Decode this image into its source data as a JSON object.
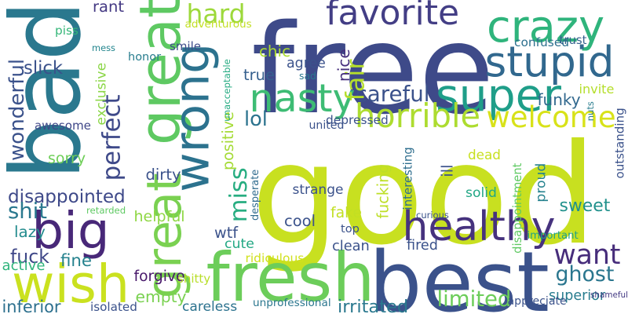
{
  "words": [
    {
      "text": "good",
      "color": "#c8e020",
      "vertical": false
    },
    {
      "text": "free",
      "color": "#3e4a89",
      "vertical": false
    },
    {
      "text": "bad",
      "color": "#2a788e",
      "vertical": true
    },
    {
      "text": "great",
      "color": "#5ec962",
      "vertical": true
    },
    {
      "text": "best",
      "color": "#3b528b",
      "vertical": false
    },
    {
      "text": "fresh",
      "color": "#6ccd5a",
      "vertical": false
    },
    {
      "text": "great",
      "color": "#7ad151",
      "vertical": true
    },
    {
      "text": "wrong",
      "color": "#2c728e",
      "vertical": true
    },
    {
      "text": "crazy",
      "color": "#2fb47c",
      "vertical": false
    },
    {
      "text": "wish",
      "color": "#cae11f",
      "vertical": false
    },
    {
      "text": "stupid",
      "color": "#31688e",
      "vertical": false
    },
    {
      "text": "super",
      "color": "#1f9e89",
      "vertical": false
    },
    {
      "text": "nasty",
      "color": "#3dbc74",
      "vertical": false
    },
    {
      "text": "healthy",
      "color": "#46327e",
      "vertical": false
    },
    {
      "text": "big",
      "color": "#482878",
      "vertical": false
    },
    {
      "text": "want",
      "color": "#472d7b",
      "vertical": false
    },
    {
      "text": "favorite",
      "color": "#433e85",
      "vertical": false
    },
    {
      "text": "perfect",
      "color": "#3e4989",
      "vertical": true
    },
    {
      "text": "hard",
      "color": "#9dd93b",
      "vertical": false
    },
    {
      "text": "miss",
      "color": "#27ad81",
      "vertical": true
    },
    {
      "text": "horrible",
      "color": "#addc30",
      "vertical": false
    },
    {
      "text": "welcome",
      "color": "#d8e219",
      "vertical": false
    },
    {
      "text": "wonderful",
      "color": "#3b528b",
      "vertical": true
    },
    {
      "text": "sweet",
      "color": "#21918c",
      "vertical": false
    },
    {
      "text": "disappointed",
      "color": "#3e4989",
      "vertical": false
    },
    {
      "text": "fuck",
      "color": "#3f4788",
      "vertical": false
    },
    {
      "text": "shit",
      "color": "#2a788e",
      "vertical": false
    },
    {
      "text": "ghost",
      "color": "#2a768e",
      "vertical": false
    },
    {
      "text": "careful",
      "color": "#3b528b",
      "vertical": false
    },
    {
      "text": "positive",
      "color": "#a5db36",
      "vertical": true
    },
    {
      "text": "fair",
      "color": "#b5de2b",
      "vertical": true
    },
    {
      "text": "empty",
      "color": "#7ad151",
      "vertical": false
    },
    {
      "text": "limited",
      "color": "#6ccd5a",
      "vertical": false
    },
    {
      "text": "superior",
      "color": "#287c8e",
      "vertical": false
    },
    {
      "text": "top",
      "color": "#3b528b",
      "vertical": false
    },
    {
      "text": "forgive",
      "color": "#48186a",
      "vertical": false
    },
    {
      "text": "rant",
      "color": "#443983",
      "vertical": false
    },
    {
      "text": "mess",
      "color": "#24868e",
      "vertical": false
    },
    {
      "text": "piss",
      "color": "#35b779",
      "vertical": false
    },
    {
      "text": "adventurous",
      "color": "#c2df23",
      "vertical": false
    },
    {
      "text": "chic",
      "color": "#addc30",
      "vertical": false
    },
    {
      "text": "smile",
      "color": "#3e4c8a",
      "vertical": false
    },
    {
      "text": "honor",
      "color": "#287d8e",
      "vertical": false
    },
    {
      "text": "slick",
      "color": "#3b528b",
      "vertical": false
    },
    {
      "text": "true",
      "color": "#355f8d",
      "vertical": false
    },
    {
      "text": "agree",
      "color": "#3b528b",
      "vertical": false
    },
    {
      "text": "sad",
      "color": "#2a788e",
      "vertical": false
    },
    {
      "text": "nice",
      "color": "#472f7d",
      "vertical": true
    },
    {
      "text": "exclusive",
      "color": "#8bd646",
      "vertical": true
    },
    {
      "text": "awesome",
      "color": "#3f4788",
      "vertical": false
    },
    {
      "text": "lol",
      "color": "#2c738e",
      "vertical": false
    },
    {
      "text": "depressed",
      "color": "#3b528b",
      "vertical": false
    },
    {
      "text": "united",
      "color": "#3b528b",
      "vertical": false
    },
    {
      "text": "unacceptable",
      "color": "#25ab82",
      "vertical": true
    },
    {
      "text": "sorry",
      "color": "#6ece58",
      "vertical": false
    },
    {
      "text": "dirty",
      "color": "#3b528b",
      "vertical": false
    },
    {
      "text": "helpful",
      "color": "#8fd744",
      "vertical": false
    },
    {
      "text": "retarded",
      "color": "#5ec962",
      "vertical": false
    },
    {
      "text": "lazy",
      "color": "#228b8d",
      "vertical": false
    },
    {
      "text": "active",
      "color": "#2fb47c",
      "vertical": false
    },
    {
      "text": "fine",
      "color": "#26828e",
      "vertical": false
    },
    {
      "text": "inferior",
      "color": "#2d708e",
      "vertical": false
    },
    {
      "text": "isolated",
      "color": "#3b528b",
      "vertical": false
    },
    {
      "text": "careless",
      "color": "#2c728e",
      "vertical": false
    },
    {
      "text": "shitty",
      "color": "#b8de29",
      "vertical": false
    },
    {
      "text": "unprofessional",
      "color": "#2a768e",
      "vertical": false
    },
    {
      "text": "strange",
      "color": "#3b528b",
      "vertical": false
    },
    {
      "text": "desperate",
      "color": "#2f6b8e",
      "vertical": true
    },
    {
      "text": "cute",
      "color": "#22a884",
      "vertical": false
    },
    {
      "text": "wtf",
      "color": "#3b528b",
      "vertical": false
    },
    {
      "text": "cool",
      "color": "#3b528b",
      "vertical": false
    },
    {
      "text": "fake",
      "color": "#c2df23",
      "vertical": false
    },
    {
      "text": "clean",
      "color": "#3b528b",
      "vertical": false
    },
    {
      "text": "ridiculous",
      "color": "#d0e11c",
      "vertical": false
    },
    {
      "text": "fucking",
      "color": "#bddf26",
      "vertical": true
    },
    {
      "text": "interesting",
      "color": "#2e6e8e",
      "vertical": true
    },
    {
      "text": "ill",
      "color": "#3b528b",
      "vertical": true
    },
    {
      "text": "dead",
      "color": "#c8e020",
      "vertical": false
    },
    {
      "text": "solid",
      "color": "#22a785",
      "vertical": false
    },
    {
      "text": "curious",
      "color": "#3b528b",
      "vertical": false
    },
    {
      "text": "fired",
      "color": "#3b528b",
      "vertical": false
    },
    {
      "text": "irritated",
      "color": "#2a788e",
      "vertical": false
    },
    {
      "text": "disappointment",
      "color": "#5ec962",
      "vertical": true
    },
    {
      "text": "proud",
      "color": "#26828e",
      "vertical": true
    },
    {
      "text": "important",
      "color": "#1fa187",
      "vertical": false
    },
    {
      "text": "appreciate",
      "color": "#3b528b",
      "vertical": false
    },
    {
      "text": "shameful",
      "color": "#443a83",
      "vertical": false
    },
    {
      "text": "outstanding",
      "color": "#3b528b",
      "vertical": true
    },
    {
      "text": "nuts",
      "color": "#287c8e",
      "vertical": true
    },
    {
      "text": "invite",
      "color": "#b5de2b",
      "vertical": false
    },
    {
      "text": "funky",
      "color": "#31688e",
      "vertical": false
    },
    {
      "text": "confused",
      "color": "#2d708e",
      "vertical": false
    },
    {
      "text": "trust",
      "color": "#34618d",
      "vertical": false
    }
  ]
}
